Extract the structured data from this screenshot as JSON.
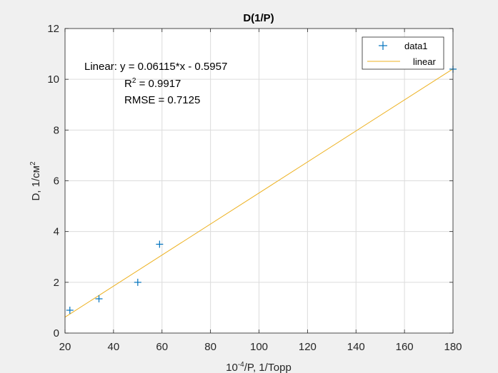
{
  "chart_data": {
    "type": "scatter",
    "title": "D(1/P)",
    "xlabel_prefix": "10",
    "xlabel_exp": "-4",
    "xlabel_suffix": "/P, 1/Торр",
    "ylabel_prefix": "D, 1/см",
    "ylabel_exp": "2",
    "xlim": [
      20,
      180
    ],
    "ylim": [
      0,
      12
    ],
    "xticks": [
      20,
      40,
      60,
      80,
      100,
      120,
      140,
      160,
      180
    ],
    "yticks": [
      0,
      2,
      4,
      6,
      8,
      10,
      12
    ],
    "grid": true,
    "legend_position": "top-right",
    "series": [
      {
        "name": "data1",
        "marker": "+",
        "color": "#0072BD",
        "x": [
          22,
          34,
          50,
          59,
          180
        ],
        "y": [
          0.9,
          1.35,
          2.0,
          3.5,
          10.4
        ]
      },
      {
        "name": "linear",
        "kind": "line",
        "color": "#EDB120",
        "slope": 0.06115,
        "intercept": -0.5957,
        "x_range": [
          20,
          180
        ]
      }
    ],
    "annotation": {
      "line1": "Linear:  y = 0.06115*x - 0.5957",
      "r2_base": "R",
      "r2_exp": "2",
      "r2_rest": " = 0.9917",
      "rmse": "RMSE = 0.7125"
    }
  }
}
